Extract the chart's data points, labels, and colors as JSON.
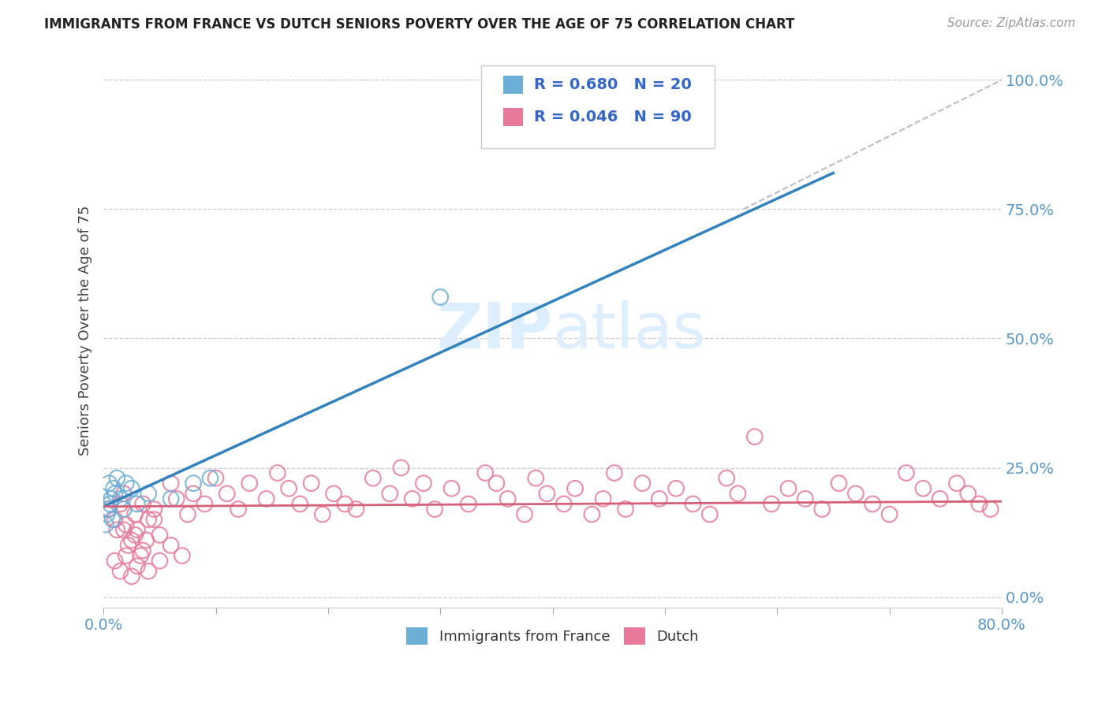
{
  "title": "IMMIGRANTS FROM FRANCE VS DUTCH SENIORS POVERTY OVER THE AGE OF 75 CORRELATION CHART",
  "source": "Source: ZipAtlas.com",
  "ylabel": "Seniors Poverty Over the Age of 75",
  "xlim": [
    0,
    0.8
  ],
  "ylim": [
    -0.02,
    1.05
  ],
  "france_R": 0.68,
  "france_N": 20,
  "dutch_R": 0.046,
  "dutch_N": 90,
  "france_color": "#6baed6",
  "dutch_color": "#e8799a",
  "france_line_color": "#3182bd",
  "dutch_line_color": "#d6607a",
  "ref_line_color": "#bbbbcc",
  "watermark_color": "#ddeeff",
  "background_color": "#ffffff",
  "grid_color": "#ccccdd",
  "tick_color": "#5599cc",
  "france_line_x0": 0.0,
  "france_line_y0": 0.175,
  "france_line_x1": 0.65,
  "france_line_y1": 0.82,
  "dutch_line_x0": 0.0,
  "dutch_line_y0": 0.175,
  "dutch_line_x1": 0.8,
  "dutch_line_y1": 0.185,
  "ref_line_x0": 0.57,
  "ref_line_y0": 0.75,
  "ref_line_x1": 0.8,
  "ref_line_y1": 1.0,
  "france_x": [
    0.002,
    0.003,
    0.004,
    0.005,
    0.006,
    0.007,
    0.008,
    0.009,
    0.01,
    0.012,
    0.015,
    0.018,
    0.02,
    0.025,
    0.03,
    0.04,
    0.06,
    0.08,
    0.095,
    0.3
  ],
  "france_y": [
    0.14,
    0.16,
    0.17,
    0.22,
    0.18,
    0.19,
    0.15,
    0.21,
    0.2,
    0.23,
    0.19,
    0.17,
    0.22,
    0.21,
    0.18,
    0.2,
    0.19,
    0.22,
    0.23,
    0.58
  ],
  "dutch_x": [
    0.005,
    0.01,
    0.012,
    0.015,
    0.018,
    0.02,
    0.025,
    0.028,
    0.03,
    0.035,
    0.04,
    0.045,
    0.05,
    0.06,
    0.065,
    0.075,
    0.08,
    0.09,
    0.1,
    0.11,
    0.12,
    0.13,
    0.145,
    0.155,
    0.165,
    0.175,
    0.185,
    0.195,
    0.205,
    0.215,
    0.01,
    0.015,
    0.02,
    0.025,
    0.03,
    0.035,
    0.04,
    0.05,
    0.06,
    0.07,
    0.225,
    0.24,
    0.255,
    0.265,
    0.275,
    0.285,
    0.295,
    0.31,
    0.325,
    0.34,
    0.35,
    0.36,
    0.375,
    0.385,
    0.395,
    0.41,
    0.42,
    0.435,
    0.445,
    0.455,
    0.465,
    0.48,
    0.495,
    0.51,
    0.525,
    0.54,
    0.555,
    0.565,
    0.58,
    0.595,
    0.61,
    0.625,
    0.64,
    0.655,
    0.67,
    0.685,
    0.7,
    0.715,
    0.73,
    0.745,
    0.76,
    0.77,
    0.78,
    0.79,
    0.018,
    0.022,
    0.028,
    0.033,
    0.038,
    0.045
  ],
  "dutch_y": [
    0.17,
    0.15,
    0.13,
    0.18,
    0.2,
    0.14,
    0.11,
    0.16,
    0.13,
    0.18,
    0.15,
    0.17,
    0.12,
    0.22,
    0.19,
    0.16,
    0.2,
    0.18,
    0.23,
    0.2,
    0.17,
    0.22,
    0.19,
    0.24,
    0.21,
    0.18,
    0.22,
    0.16,
    0.2,
    0.18,
    0.07,
    0.05,
    0.08,
    0.04,
    0.06,
    0.09,
    0.05,
    0.07,
    0.1,
    0.08,
    0.17,
    0.23,
    0.2,
    0.25,
    0.19,
    0.22,
    0.17,
    0.21,
    0.18,
    0.24,
    0.22,
    0.19,
    0.16,
    0.23,
    0.2,
    0.18,
    0.21,
    0.16,
    0.19,
    0.24,
    0.17,
    0.22,
    0.19,
    0.21,
    0.18,
    0.16,
    0.23,
    0.2,
    0.31,
    0.18,
    0.21,
    0.19,
    0.17,
    0.22,
    0.2,
    0.18,
    0.16,
    0.24,
    0.21,
    0.19,
    0.22,
    0.2,
    0.18,
    0.17,
    0.13,
    0.1,
    0.12,
    0.08,
    0.11,
    0.15
  ]
}
